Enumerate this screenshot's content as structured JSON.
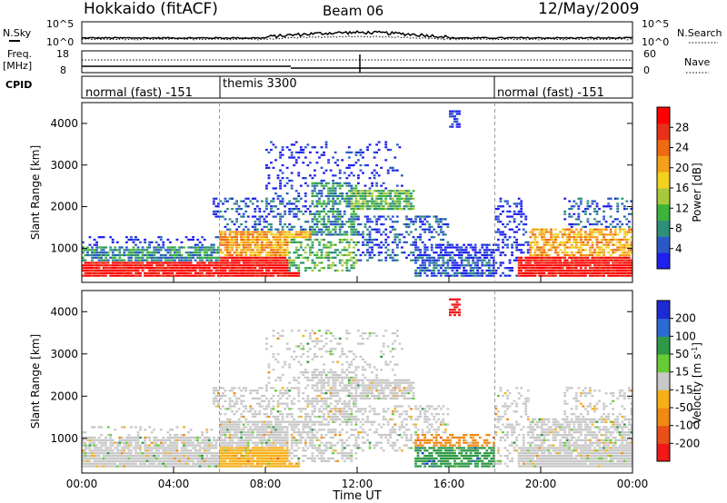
{
  "header": {
    "title": "Hokkaido (fitACF)",
    "beam": "Beam 06",
    "date": "12/May/2009"
  },
  "params": {
    "nsky_label": "N.Sky",
    "nsearch_label": "N.Search",
    "freq_label_1": "Freq.",
    "freq_label_2": "[MHz]",
    "nave_label": "Nave",
    "cpid_label": "CPID",
    "nsky_ticks": [
      "10^5",
      "10^0"
    ],
    "nsearch_ticks": [
      "10^5",
      "10^0"
    ],
    "freq_ticks": [
      "18",
      "8"
    ],
    "nave_ticks": [
      "60",
      "0"
    ],
    "cpid_segments": [
      {
        "label": "normal (fast) -151",
        "start": 0,
        "end": 6
      },
      {
        "label": "themis 3300",
        "start": 6,
        "end": 18
      },
      {
        "label": "normal (fast) -151",
        "start": 18,
        "end": 24
      }
    ]
  },
  "chart_data": [
    {
      "type": "heatmap",
      "ylabel": "Slant Range [km]",
      "xlabel": "",
      "x_range": [
        0,
        24
      ],
      "ylim": [
        180,
        4500
      ],
      "y_ticks": [
        "1000",
        "2000",
        "3000",
        "4000"
      ],
      "colorbar": {
        "label": "Power [dB]",
        "ticks": [
          "4",
          "8",
          "12",
          "16",
          "20",
          "24",
          "28"
        ],
        "colors": [
          "#1f1ff0",
          "#2a58c8",
          "#2e8f7a",
          "#3cb43c",
          "#a8c93a",
          "#f2d21e",
          "#f5a018",
          "#f06a12",
          "#e83018",
          "#ff0000"
        ]
      }
    },
    {
      "type": "heatmap",
      "ylabel": "Slant Range [km]",
      "xlabel": "Time UT",
      "x_range": [
        0,
        24
      ],
      "ylim": [
        180,
        4500
      ],
      "y_ticks": [
        "1000",
        "2000",
        "3000",
        "4000"
      ],
      "x_ticks": [
        "00:00",
        "04:00",
        "08:00",
        "12:00",
        "16:00",
        "20:00",
        "00:00"
      ],
      "colorbar": {
        "label": "Velocity [m s",
        "label_sup": "-1",
        "label_end": "]",
        "ticks": [
          "200",
          "100",
          "50",
          "15",
          "-15",
          "-50",
          "-100",
          "-200"
        ],
        "colors": [
          "#1e2ad2",
          "#2c6ad2",
          "#2e9a46",
          "#66cc33",
          "#c8c8c8",
          "#f5b018",
          "#f08a14",
          "#e8501a",
          "#f01818"
        ]
      }
    }
  ]
}
